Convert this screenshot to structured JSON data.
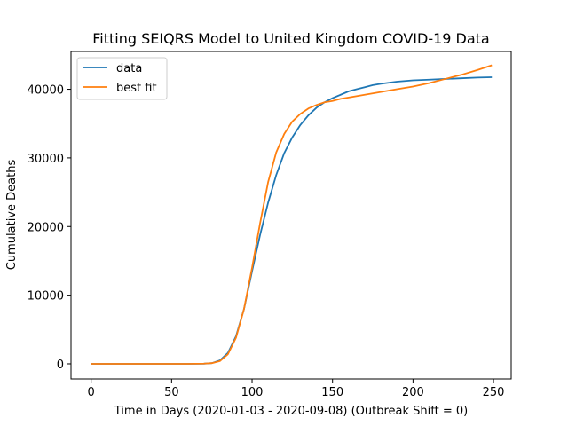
{
  "chart_data": {
    "type": "line",
    "title": "Fitting SEIQRS Model to United Kingdom COVID-19 Data",
    "xlabel": "Time in Days (2020-01-03 - 2020-09-08) (Outbreak Shift = 0)",
    "ylabel": "Cumulative Deaths",
    "xlim": [
      -12.5,
      261
    ],
    "ylim": [
      -2200,
      45500
    ],
    "xticks": [
      0,
      50,
      100,
      150,
      200,
      250
    ],
    "yticks": [
      0,
      10000,
      20000,
      30000,
      40000
    ],
    "grid": false,
    "legend_position": "top-left",
    "series": [
      {
        "name": "data",
        "color": "#1f77b4",
        "x": [
          0,
          20,
          40,
          60,
          70,
          75,
          80,
          85,
          90,
          95,
          100,
          105,
          110,
          115,
          120,
          125,
          130,
          135,
          140,
          145,
          150,
          155,
          160,
          165,
          170,
          175,
          180,
          190,
          200,
          210,
          220,
          230,
          240,
          249
        ],
        "y": [
          0,
          0,
          0,
          0,
          20,
          100,
          500,
          1600,
          4000,
          8000,
          13500,
          18800,
          23500,
          27500,
          30700,
          33000,
          34800,
          36200,
          37300,
          38100,
          38700,
          39200,
          39700,
          40000,
          40300,
          40600,
          40800,
          41100,
          41300,
          41400,
          41500,
          41600,
          41700,
          41750
        ]
      },
      {
        "name": "best fit",
        "color": "#ff7f0e",
        "x": [
          0,
          20,
          40,
          60,
          70,
          75,
          80,
          85,
          90,
          95,
          100,
          105,
          110,
          115,
          120,
          125,
          130,
          135,
          140,
          145,
          150,
          155,
          160,
          170,
          180,
          190,
          200,
          210,
          220,
          230,
          240,
          249
        ],
        "y": [
          0,
          0,
          0,
          0,
          30,
          100,
          400,
          1400,
          3800,
          8000,
          14000,
          20500,
          26500,
          30800,
          33500,
          35300,
          36400,
          37200,
          37700,
          38100,
          38300,
          38600,
          38800,
          39200,
          39600,
          40000,
          40400,
          40900,
          41500,
          42100,
          42800,
          43500
        ]
      }
    ]
  }
}
